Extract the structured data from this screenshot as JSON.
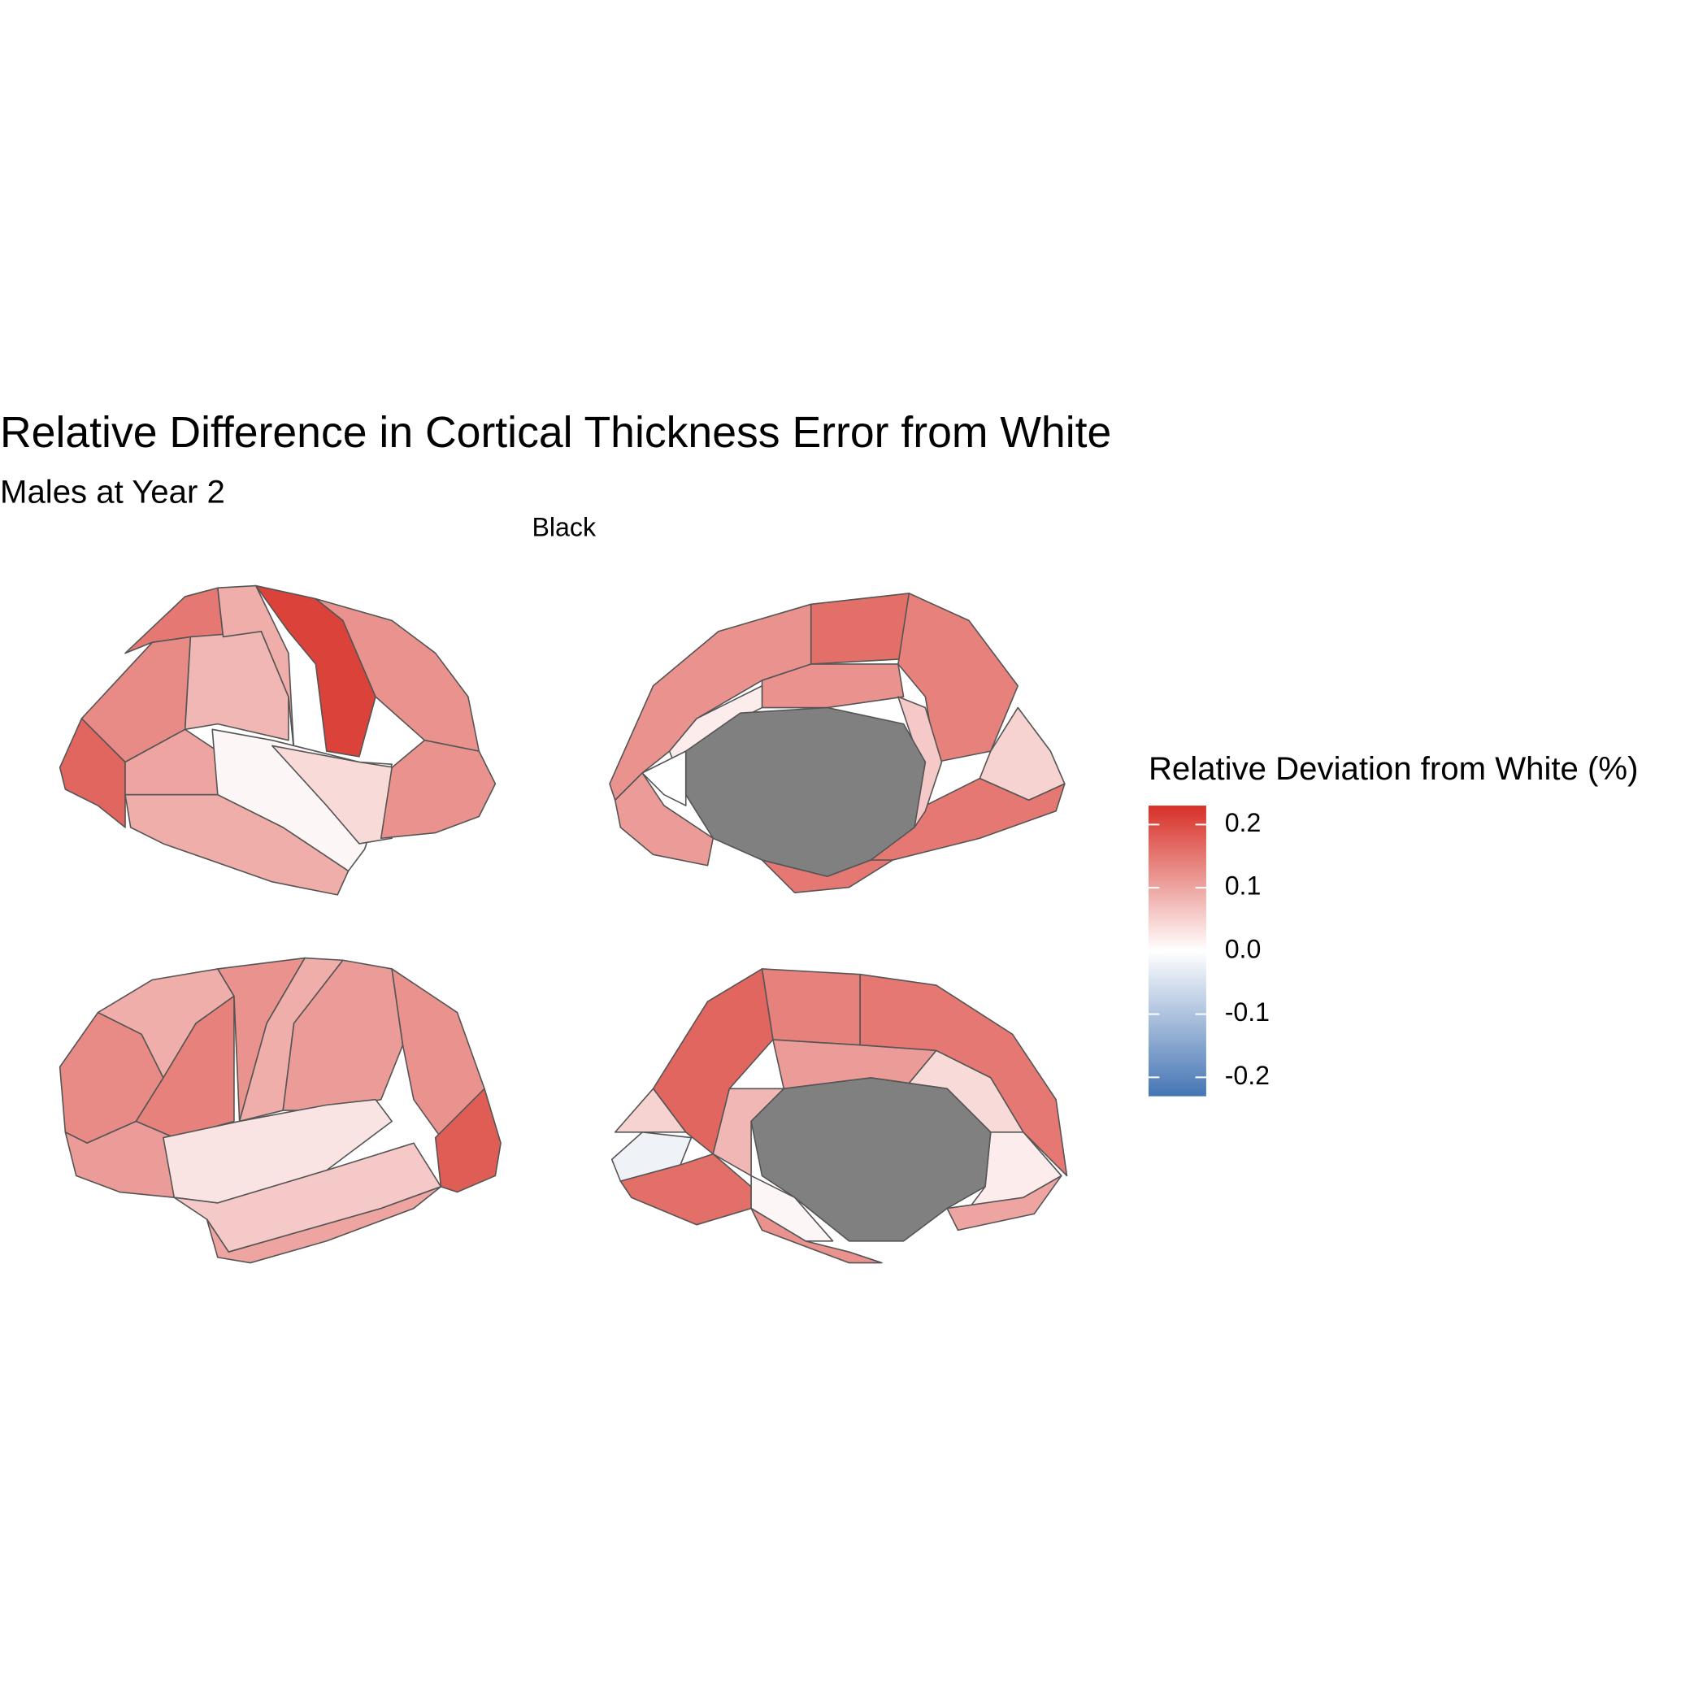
{
  "chart_data": {
    "type": "brain",
    "title": "Relative Difference in Cortical Thickness Error from White",
    "subtitle": "Males at Year 2",
    "facet": "Black",
    "legend_title": "Relative Deviation from White (%)",
    "clim": [
      -0.23,
      0.23
    ],
    "ticks": [
      0.2,
      0.1,
      {
        "value": 0,
        "label": "0.0"
      },
      -0.1,
      -0.2
    ],
    "colors": [
      "#4575b4",
      "#ffffff",
      "#d73027"
    ],
    "na_color": "#808080",
    "values": [
      0.17,
      0.13,
      0.15,
      0.08,
      0.09,
      0.21,
      0.12,
      0.1,
      0.09,
      0.01,
      0.04,
      0.12,
      null,
      0.12,
      0.16,
      0.14,
      0.05,
      0.15,
      0.12,
      0.06,
      0.02,
      0.0,
      0.11,
      0.15,
      0.13,
      0.09,
      0.14,
      0.12,
      0.09,
      0.11,
      0.12,
      0.18,
      0.11,
      0.03,
      0.06,
      0.1,
      null,
      0.15,
      0.14,
      0.17,
      0.05,
      -0.02,
      0.16,
      0.11,
      0.04,
      0.02,
      0.08,
      0.1,
      0.01,
      0.12
    ]
  }
}
